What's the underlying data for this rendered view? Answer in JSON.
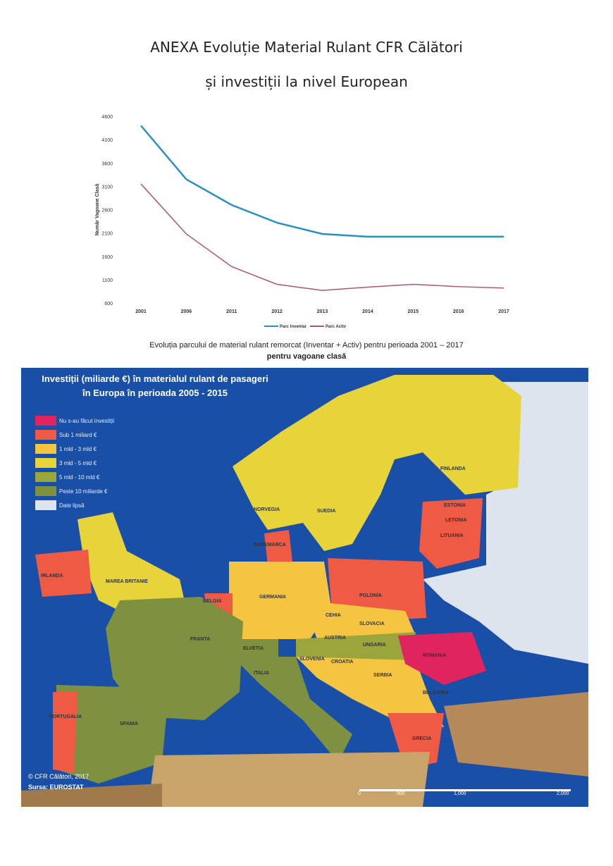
{
  "title": {
    "line1": "ANEXA Evoluție Material Rulant CFR Călători",
    "line2": "și investiții la nivel European"
  },
  "chart_data": {
    "type": "line",
    "title": "",
    "ylabel": "Număr Vagoane Clasă",
    "xlabel": "",
    "categories": [
      "2001",
      "2006",
      "2011",
      "2012",
      "2013",
      "2014",
      "2015",
      "2016",
      "2017"
    ],
    "yticks": [
      600,
      1100,
      1600,
      2100,
      2600,
      3100,
      3600,
      4100,
      4600
    ],
    "ylim": [
      600,
      4600
    ],
    "legend_position": "bottom",
    "series": [
      {
        "name": "Parc Inventar",
        "color": "#2a8fc4",
        "values": [
          4400,
          3250,
          2700,
          2320,
          2080,
          2020,
          2020,
          2020,
          2020
        ]
      },
      {
        "name": "Parc Activ",
        "color": "#b0566e",
        "values": [
          3150,
          2080,
          1380,
          1000,
          870,
          940,
          1000,
          950,
          920
        ]
      }
    ]
  },
  "caption": {
    "line1": "Evoluția parcului de material rulant remorcat (Inventar + Activ) pentru perioada 2001 – 2017",
    "line2": "pentru vagoane clasă"
  },
  "map": {
    "title1": "Investiții (miliarde €) în materialul rulant de pasageri",
    "title2": "în Europa în perioada 2005 - 2015",
    "legend": [
      {
        "label": "Nu s-au făcut investiții",
        "color": "#e0245e"
      },
      {
        "label": "Sub 1 miliard €",
        "color": "#ef5a45"
      },
      {
        "label": "1 mld - 3 mld €",
        "color": "#f5c542"
      },
      {
        "label": "3 mld - 5 mld €",
        "color": "#e6d43a"
      },
      {
        "label": "5 mld - 10 mld €",
        "color": "#9aa63c"
      },
      {
        "label": "Peste 10 miliarde €",
        "color": "#7e9140"
      },
      {
        "label": "Date lipsă",
        "color": "#dde4ee"
      }
    ],
    "countries": [
      "NORVEGIA",
      "SUEDIA",
      "FINLANDA",
      "ESTONIA",
      "LETONIA",
      "LITUANIA",
      "DANEMARCA",
      "IRLANDA",
      "MAREA BRITANIE",
      "BELGIA",
      "GERMANIA",
      "POLONIA",
      "CEHIA",
      "SLOVACIA",
      "AUSTRIA",
      "UNGARIA",
      "ROMANIA",
      "FRANTA",
      "ELVETIA",
      "ITALIA",
      "SLOVENIA",
      "CROATIA",
      "SERBIA",
      "BULGARIA",
      "GRECIA",
      "PORTUGALIA",
      "SPANIA"
    ],
    "copyright": "© CFR Călători, 2017",
    "source": "Sursa: EUROSTAT",
    "scale": [
      "0",
      "500",
      "1,000",
      "2,000"
    ]
  }
}
